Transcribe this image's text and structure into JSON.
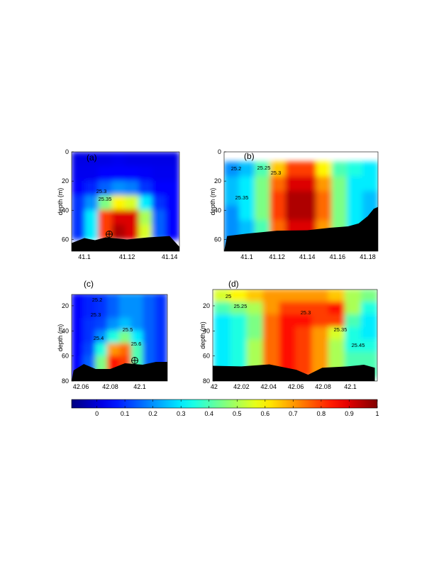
{
  "chart_data": [
    {
      "type": "heatmap",
      "panel_label": "(a)",
      "ylabel": "depth (m)",
      "xlim": [
        41.094,
        41.1446
      ],
      "ylim": [
        0,
        68
      ],
      "xticks": [
        41.1,
        41.12,
        41.14
      ],
      "yticks": [
        0,
        20,
        40,
        60
      ],
      "x": [
        41.0972,
        41.1035,
        41.1098,
        41.1161,
        41.1224,
        41.1287,
        41.135,
        41.1413
      ],
      "y": [
        5,
        15,
        25,
        35,
        45,
        55
      ],
      "z": [
        [
          0.02,
          0.02,
          0.02,
          0.03,
          0.02,
          0.02,
          0.02,
          0.02
        ],
        [
          0.03,
          0.03,
          0.05,
          0.05,
          0.05,
          0.04,
          0.03,
          0.03
        ],
        [
          0.05,
          0.08,
          0.15,
          0.2,
          0.18,
          0.1,
          0.05,
          0.05
        ],
        [
          0.1,
          0.2,
          0.45,
          0.6,
          0.55,
          0.3,
          0.1,
          0.05
        ],
        [
          0.1,
          0.3,
          0.8,
          0.9,
          0.9,
          0.5,
          0.15,
          0.05
        ],
        [
          0.1,
          0.3,
          0.8,
          0.95,
          0.9,
          0.55,
          0.15,
          0.05
        ]
      ],
      "contour_labels": [
        "25.3",
        "25.35"
      ],
      "bottom": {
        "x": [
          41.094,
          41.1,
          41.105,
          41.11,
          41.12,
          41.13,
          41.14,
          41.1446
        ],
        "depth": [
          62.4,
          59,
          60.5,
          58.5,
          60,
          58.5,
          57.6,
          65
        ]
      }
    },
    {
      "type": "heatmap",
      "panel_label": "(b)",
      "ylabel": "depth (m)",
      "xlim": [
        41.085,
        41.1868
      ],
      "ylim": [
        0,
        68
      ],
      "xticks": [
        41.1,
        41.12,
        41.14,
        41.16,
        41.18
      ],
      "yticks": [
        0,
        20,
        40,
        60
      ],
      "x": [
        41.09,
        41.1002,
        41.1104,
        41.1206,
        41.1308,
        41.141,
        41.1512,
        41.1614,
        41.1716,
        41.1818
      ],
      "y": [
        12,
        22,
        32,
        42,
        52,
        62
      ],
      "z": [
        [
          0.2,
          0.25,
          0.4,
          0.65,
          0.8,
          0.8,
          0.6,
          0.4,
          0.35,
          0.3
        ],
        [
          0.25,
          0.3,
          0.45,
          0.75,
          0.9,
          0.9,
          0.7,
          0.45,
          0.3,
          0.3
        ],
        [
          0.25,
          0.3,
          0.45,
          0.8,
          0.95,
          0.95,
          0.75,
          0.45,
          0.3,
          0.25
        ],
        [
          0.2,
          0.3,
          0.45,
          0.8,
          0.95,
          0.95,
          0.75,
          0.45,
          0.3,
          0.25
        ],
        [
          0.2,
          0.25,
          0.4,
          0.75,
          0.9,
          0.9,
          0.7,
          0.45,
          0.3,
          0.25
        ],
        [
          0.2,
          0.25,
          0.4,
          0.75,
          0.9,
          0.9,
          0.7,
          0.45,
          0.3,
          0.25
        ]
      ],
      "contour_labels": [
        "25.2",
        "25.25",
        "25.3",
        "25.35"
      ],
      "bottom": {
        "x": [
          41.085,
          41.087,
          41.1,
          41.12,
          41.14,
          41.155,
          41.167,
          41.174,
          41.18,
          41.184,
          41.1868
        ],
        "depth": [
          68,
          57.6,
          56,
          54,
          53.7,
          52,
          51,
          49,
          44,
          39,
          37.7
        ]
      }
    },
    {
      "type": "heatmap",
      "panel_label": "(c)",
      "ylabel": "depth (m)",
      "xlim": [
        42.0537,
        42.1188
      ],
      "ylim": [
        11,
        80
      ],
      "xticks": [
        42.06,
        42.08,
        42.1
      ],
      "yticks": [
        20,
        40,
        60,
        80
      ],
      "x": [
        42.0578,
        42.0659,
        42.074,
        42.0821,
        42.0902,
        42.0983,
        42.1064,
        42.1145
      ],
      "y": [
        15,
        25,
        35,
        45,
        55,
        65,
        75
      ],
      "z": [
        [
          0.05,
          0.08,
          0.1,
          0.15,
          0.2,
          0.2,
          0.15,
          0.1
        ],
        [
          0.05,
          0.08,
          0.1,
          0.15,
          0.2,
          0.2,
          0.15,
          0.1
        ],
        [
          0.05,
          0.1,
          0.12,
          0.2,
          0.25,
          0.2,
          0.15,
          0.1
        ],
        [
          0.05,
          0.1,
          0.2,
          0.35,
          0.45,
          0.3,
          0.15,
          0.1
        ],
        [
          0.05,
          0.12,
          0.35,
          0.7,
          0.75,
          0.4,
          0.15,
          0.1
        ],
        [
          0.05,
          0.15,
          0.45,
          0.85,
          0.8,
          0.4,
          0.15,
          0.1
        ],
        [
          0.05,
          0.15,
          0.45,
          0.85,
          0.8,
          0.4,
          0.15,
          0.1
        ]
      ],
      "contour_labels": [
        "25.2",
        "25.3",
        "25.5",
        "25.4",
        "25.6"
      ],
      "bottom": {
        "x": [
          42.0537,
          42.055,
          42.062,
          42.07,
          42.08,
          42.09,
          42.102,
          42.111,
          42.1188
        ],
        "depth": [
          80,
          71.5,
          66.4,
          70.4,
          70.4,
          65.8,
          67,
          64.7,
          64.7
        ]
      }
    },
    {
      "type": "heatmap",
      "panel_label": "(d)",
      "ylabel": "depth (m)",
      "xlim": [
        41.999,
        42.1198
      ],
      "ylim": [
        7,
        80
      ],
      "xticks": [
        42,
        42.02,
        42.04,
        42.06,
        42.08,
        42.1
      ],
      "yticks": [
        20,
        40,
        60,
        80
      ],
      "x": [
        42.006,
        42.018,
        42.03,
        42.042,
        42.054,
        42.066,
        42.078,
        42.09,
        42.102,
        42.114
      ],
      "y": [
        12,
        22,
        32,
        42,
        52,
        62,
        72
      ],
      "z": [
        [
          0.55,
          0.6,
          0.65,
          0.7,
          0.7,
          0.7,
          0.7,
          0.65,
          0.5,
          0.45
        ],
        [
          0.4,
          0.45,
          0.5,
          0.7,
          0.8,
          0.8,
          0.8,
          0.85,
          0.5,
          0.35
        ],
        [
          0.3,
          0.35,
          0.45,
          0.75,
          0.85,
          0.85,
          0.8,
          0.8,
          0.4,
          0.3
        ],
        [
          0.3,
          0.35,
          0.45,
          0.75,
          0.85,
          0.8,
          0.7,
          0.55,
          0.35,
          0.3
        ],
        [
          0.3,
          0.35,
          0.5,
          0.75,
          0.85,
          0.8,
          0.7,
          0.5,
          0.35,
          0.35
        ],
        [
          0.3,
          0.35,
          0.5,
          0.75,
          0.85,
          0.8,
          0.7,
          0.5,
          0.4,
          0.4
        ],
        [
          0.3,
          0.35,
          0.5,
          0.75,
          0.85,
          0.8,
          0.7,
          0.5,
          0.4,
          0.4
        ]
      ],
      "contour_labels": [
        "25",
        "25.25",
        "25.3",
        "25.35",
        "25.45"
      ],
      "bottom": {
        "x": [
          41.999,
          42.02,
          42.0406,
          42.0604,
          42.069,
          42.0794,
          42.0979,
          42.11,
          42.118
        ],
        "depth": [
          67.8,
          68.3,
          66.7,
          71,
          75,
          69.4,
          68.3,
          67,
          69.4
        ]
      }
    }
  ],
  "colorbar": {
    "limits": [
      -0.09,
      1
    ],
    "ticks": [
      0,
      0.1,
      0.2,
      0.3,
      0.4,
      0.5,
      0.6,
      0.7,
      0.8,
      0.9,
      1
    ]
  }
}
